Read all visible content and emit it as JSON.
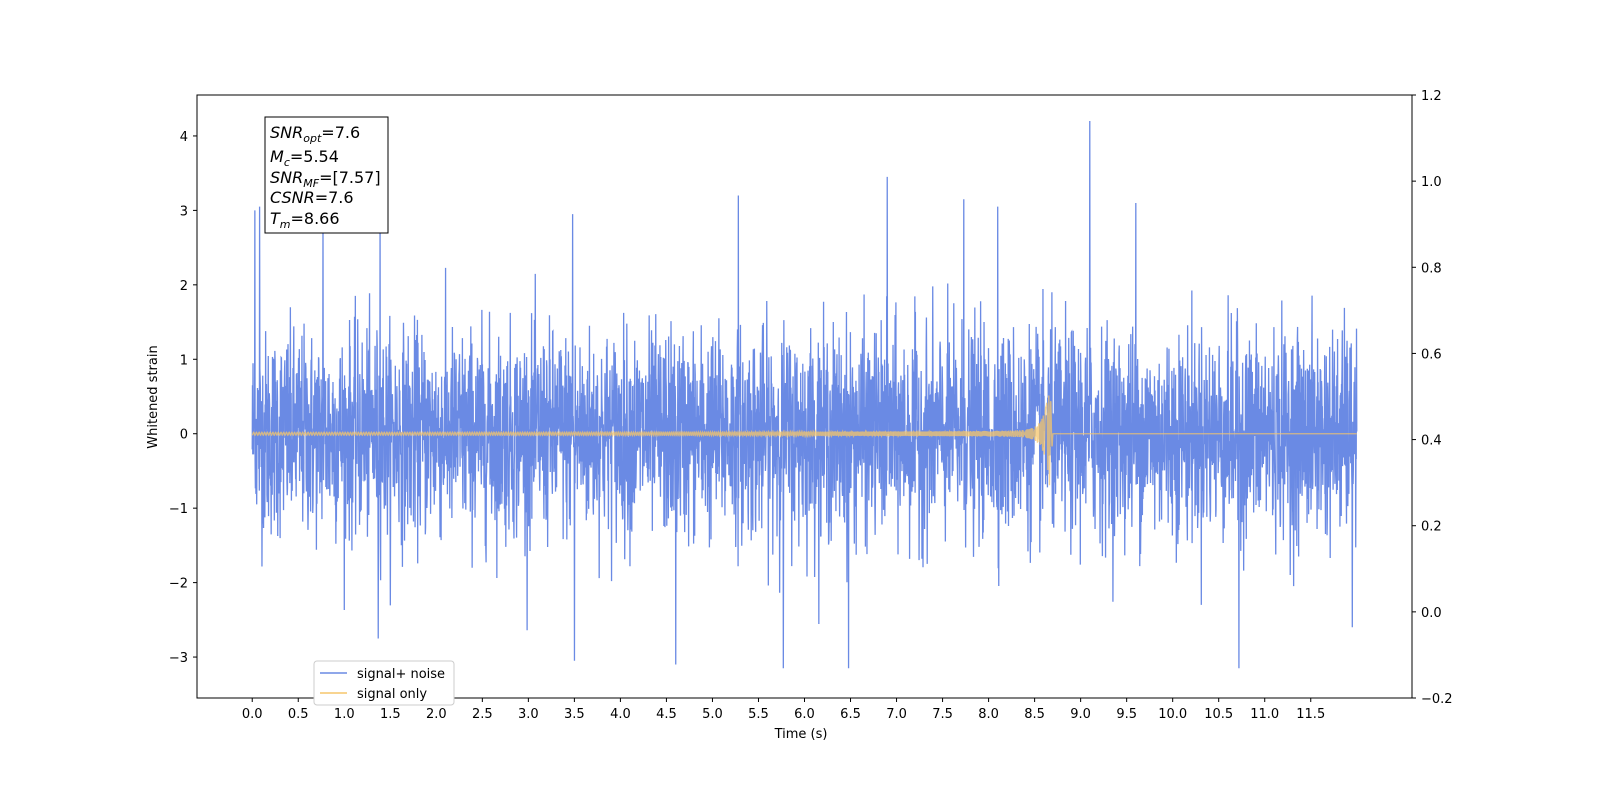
{
  "chart_data": {
    "type": "line",
    "title": "",
    "xlabel": "Time (s)",
    "ylabel": "Whitened strain",
    "xlim": [
      -0.6,
      12.6
    ],
    "ylim": [
      -3.55,
      4.55
    ],
    "y2lim": [
      -0.2,
      1.2
    ],
    "x_ticks": [
      0.0,
      0.5,
      1.0,
      1.5,
      2.0,
      2.5,
      3.0,
      3.5,
      4.0,
      4.5,
      5.0,
      5.5,
      6.0,
      6.5,
      7.0,
      7.5,
      8.0,
      8.5,
      9.0,
      9.5,
      10.0,
      10.5,
      11.0,
      11.5
    ],
    "x_tick_labels": [
      "0.0",
      "0.5",
      "1.0",
      "1.5",
      "2.0",
      "2.5",
      "3.0",
      "3.5",
      "4.0",
      "4.5",
      "5.0",
      "5.5",
      "6.0",
      "6.5",
      "7.0",
      "7.5",
      "8.0",
      "8.5",
      "9.0",
      "9.5",
      "10.0",
      "10.5",
      "11.0",
      "11.5"
    ],
    "y_ticks": [
      -3,
      -2,
      -1,
      0,
      1,
      2,
      3,
      4
    ],
    "y_tick_labels": [
      "−3",
      "−2",
      "−1",
      "0",
      "1",
      "2",
      "3",
      "4"
    ],
    "y2_ticks": [
      -0.2,
      0.0,
      0.2,
      0.4,
      0.6,
      0.8,
      1.0,
      1.2
    ],
    "y2_tick_labels": [
      "−0.2",
      "0.0",
      "0.2",
      "0.4",
      "0.6",
      "0.8",
      "1.0",
      "1.2"
    ],
    "grid": false,
    "legend_position": "bottom-left",
    "series": [
      {
        "name": "signal+ noise",
        "color": "#6a8ae4",
        "x_range": [
          0.0,
          12.0
        ],
        "approx_band_core": [
          -1.2,
          1.2
        ],
        "notable_peaks": [
          {
            "x": 0.03,
            "y": 3.0
          },
          {
            "x": 0.08,
            "y": 3.05
          },
          {
            "x": 0.77,
            "y": 2.85
          },
          {
            "x": 1.39,
            "y": 3.15
          },
          {
            "x": 1.37,
            "y": -2.75
          },
          {
            "x": 3.5,
            "y": -3.05
          },
          {
            "x": 3.48,
            "y": 2.95
          },
          {
            "x": 4.6,
            "y": -3.1
          },
          {
            "x": 5.28,
            "y": 3.2
          },
          {
            "x": 5.77,
            "y": -3.15
          },
          {
            "x": 6.48,
            "y": -3.15
          },
          {
            "x": 6.9,
            "y": 3.45
          },
          {
            "x": 7.73,
            "y": 3.15
          },
          {
            "x": 8.1,
            "y": 3.05
          },
          {
            "x": 9.1,
            "y": 4.2
          },
          {
            "x": 9.6,
            "y": 3.1
          },
          {
            "x": 10.72,
            "y": -3.15
          },
          {
            "x": 11.95,
            "y": -2.6
          }
        ]
      },
      {
        "name": "signal only",
        "color": "#f6c56b",
        "x_range": [
          0.0,
          12.0
        ],
        "merger_time": 8.66,
        "amplitude_start": 0.02,
        "amplitude_peak": 0.62,
        "amplitude_peak_neg": -0.75
      }
    ],
    "annotations": [
      {
        "key": "SNR",
        "sub": "opt",
        "value": "=7.6"
      },
      {
        "key": "M",
        "sub": "c",
        "value": "=5.54"
      },
      {
        "key": "SNR",
        "sub": "MF",
        "value": "=[7.57]"
      },
      {
        "key": "CSNR",
        "sub": "",
        "value": "=7.6"
      },
      {
        "key": "T",
        "sub": "m",
        "value": "=8.66"
      }
    ]
  }
}
